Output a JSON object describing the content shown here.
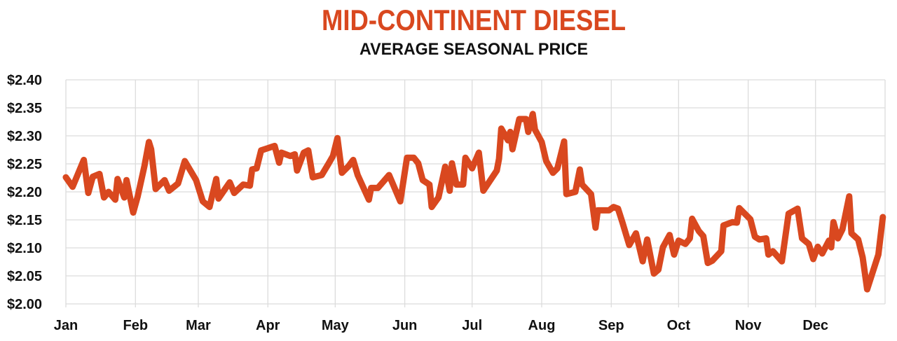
{
  "chart_data": {
    "type": "line",
    "title": "MID-CONTINENT DIESEL",
    "subtitle": "AVERAGE SEASONAL PRICE",
    "xlabel": "",
    "ylabel": "",
    "ylim": [
      2.0,
      2.4
    ],
    "yticks": [
      "$2.00",
      "$2.05",
      "$2.10",
      "$2.15",
      "$2.20",
      "$2.25",
      "$2.30",
      "$2.35",
      "$2.40"
    ],
    "ytick_values": [
      2.0,
      2.05,
      2.1,
      2.15,
      2.2,
      2.25,
      2.3,
      2.35,
      2.4
    ],
    "xticks": [
      "Jan",
      "Feb",
      "Mar",
      "Apr",
      "May",
      "Jun",
      "Jul",
      "Aug",
      "Sep",
      "Oct",
      "Nov",
      "Dec"
    ],
    "grid": true,
    "line_color": "#d9481f",
    "x": [
      "01-01",
      "01-04",
      "01-09",
      "01-11",
      "01-13",
      "01-16",
      "01-18",
      "01-20",
      "01-23",
      "01-24",
      "01-27",
      "01-28",
      "01-31",
      "02-02",
      "02-05",
      "02-07",
      "02-08",
      "02-10",
      "02-14",
      "02-16",
      "02-20",
      "02-23",
      "02-28",
      "03-03",
      "03-06",
      "03-07",
      "03-09",
      "03-10",
      "03-15",
      "03-17",
      "03-21",
      "03-24",
      "03-25",
      "03-27",
      "03-29",
      "04-04",
      "04-06",
      "04-07",
      "04-11",
      "04-13",
      "04-14",
      "04-17",
      "04-19",
      "04-21",
      "04-25",
      "04-28",
      "04-30",
      "05-02",
      "05-04",
      "05-07",
      "05-09",
      "05-11",
      "05-16",
      "05-17",
      "05-20",
      "05-25",
      "05-30",
      "06-02",
      "06-05",
      "06-07",
      "06-09",
      "06-12",
      "06-13",
      "06-16",
      "06-19",
      "06-21",
      "06-22",
      "06-24",
      "06-27",
      "06-28",
      "07-01",
      "07-04",
      "07-06",
      "07-12",
      "07-13",
      "07-14",
      "07-17",
      "07-18",
      "07-19",
      "07-22",
      "07-25",
      "07-26",
      "07-28",
      "07-29",
      "08-01",
      "08-03",
      "08-06",
      "08-08",
      "08-11",
      "08-12",
      "08-16",
      "08-18",
      "08-19",
      "08-23",
      "08-25",
      "08-26",
      "08-31",
      "09-02",
      "09-04",
      "09-06",
      "09-09",
      "09-12",
      "09-15",
      "09-17",
      "09-20",
      "09-22",
      "09-24",
      "09-27",
      "09-29",
      "10-01",
      "10-04",
      "10-06",
      "10-07",
      "10-10",
      "10-12",
      "10-14",
      "10-16",
      "10-20",
      "10-21",
      "10-25",
      "10-27",
      "10-28",
      "11-02",
      "11-04",
      "11-06",
      "11-09",
      "11-10",
      "11-12",
      "11-16",
      "11-19",
      "11-23",
      "11-25",
      "11-28",
      "11-30",
      "12-02",
      "12-04",
      "12-07",
      "12-08",
      "12-09",
      "12-11",
      "12-13",
      "12-16",
      "12-17",
      "12-20",
      "12-22",
      "12-24",
      "12-29",
      "12-31"
    ],
    "y": [
      2.226,
      2.209,
      2.257,
      2.198,
      2.227,
      2.232,
      2.19,
      2.2,
      2.186,
      2.223,
      2.19,
      2.221,
      2.163,
      2.192,
      2.246,
      2.289,
      2.276,
      2.205,
      2.221,
      2.202,
      2.215,
      2.255,
      2.221,
      2.183,
      2.173,
      2.19,
      2.223,
      2.188,
      2.217,
      2.198,
      2.213,
      2.211,
      2.24,
      2.242,
      2.274,
      2.282,
      2.252,
      2.27,
      2.264,
      2.267,
      2.238,
      2.27,
      2.274,
      2.226,
      2.23,
      2.25,
      2.264,
      2.296,
      2.234,
      2.246,
      2.257,
      2.23,
      2.186,
      2.207,
      2.207,
      2.23,
      2.183,
      2.261,
      2.261,
      2.251,
      2.221,
      2.213,
      2.173,
      2.19,
      2.245,
      2.202,
      2.251,
      2.213,
      2.213,
      2.261,
      2.242,
      2.27,
      2.202,
      2.238,
      2.259,
      2.313,
      2.292,
      2.307,
      2.276,
      2.33,
      2.33,
      2.307,
      2.339,
      2.311,
      2.289,
      2.255,
      2.234,
      2.242,
      2.29,
      2.196,
      2.2,
      2.24,
      2.213,
      2.196,
      2.136,
      2.167,
      2.167,
      2.173,
      2.17,
      2.145,
      2.105,
      2.126,
      2.076,
      2.115,
      2.054,
      2.061,
      2.101,
      2.123,
      2.088,
      2.113,
      2.107,
      2.117,
      2.152,
      2.13,
      2.121,
      2.073,
      2.077,
      2.094,
      2.14,
      2.146,
      2.145,
      2.171,
      2.151,
      2.12,
      2.115,
      2.117,
      2.088,
      2.094,
      2.076,
      2.161,
      2.17,
      2.117,
      2.107,
      2.08,
      2.102,
      2.09,
      2.113,
      2.101,
      2.146,
      2.117,
      2.133,
      2.192,
      2.126,
      2.115,
      2.083,
      2.026,
      2.088,
      2.155
    ]
  }
}
